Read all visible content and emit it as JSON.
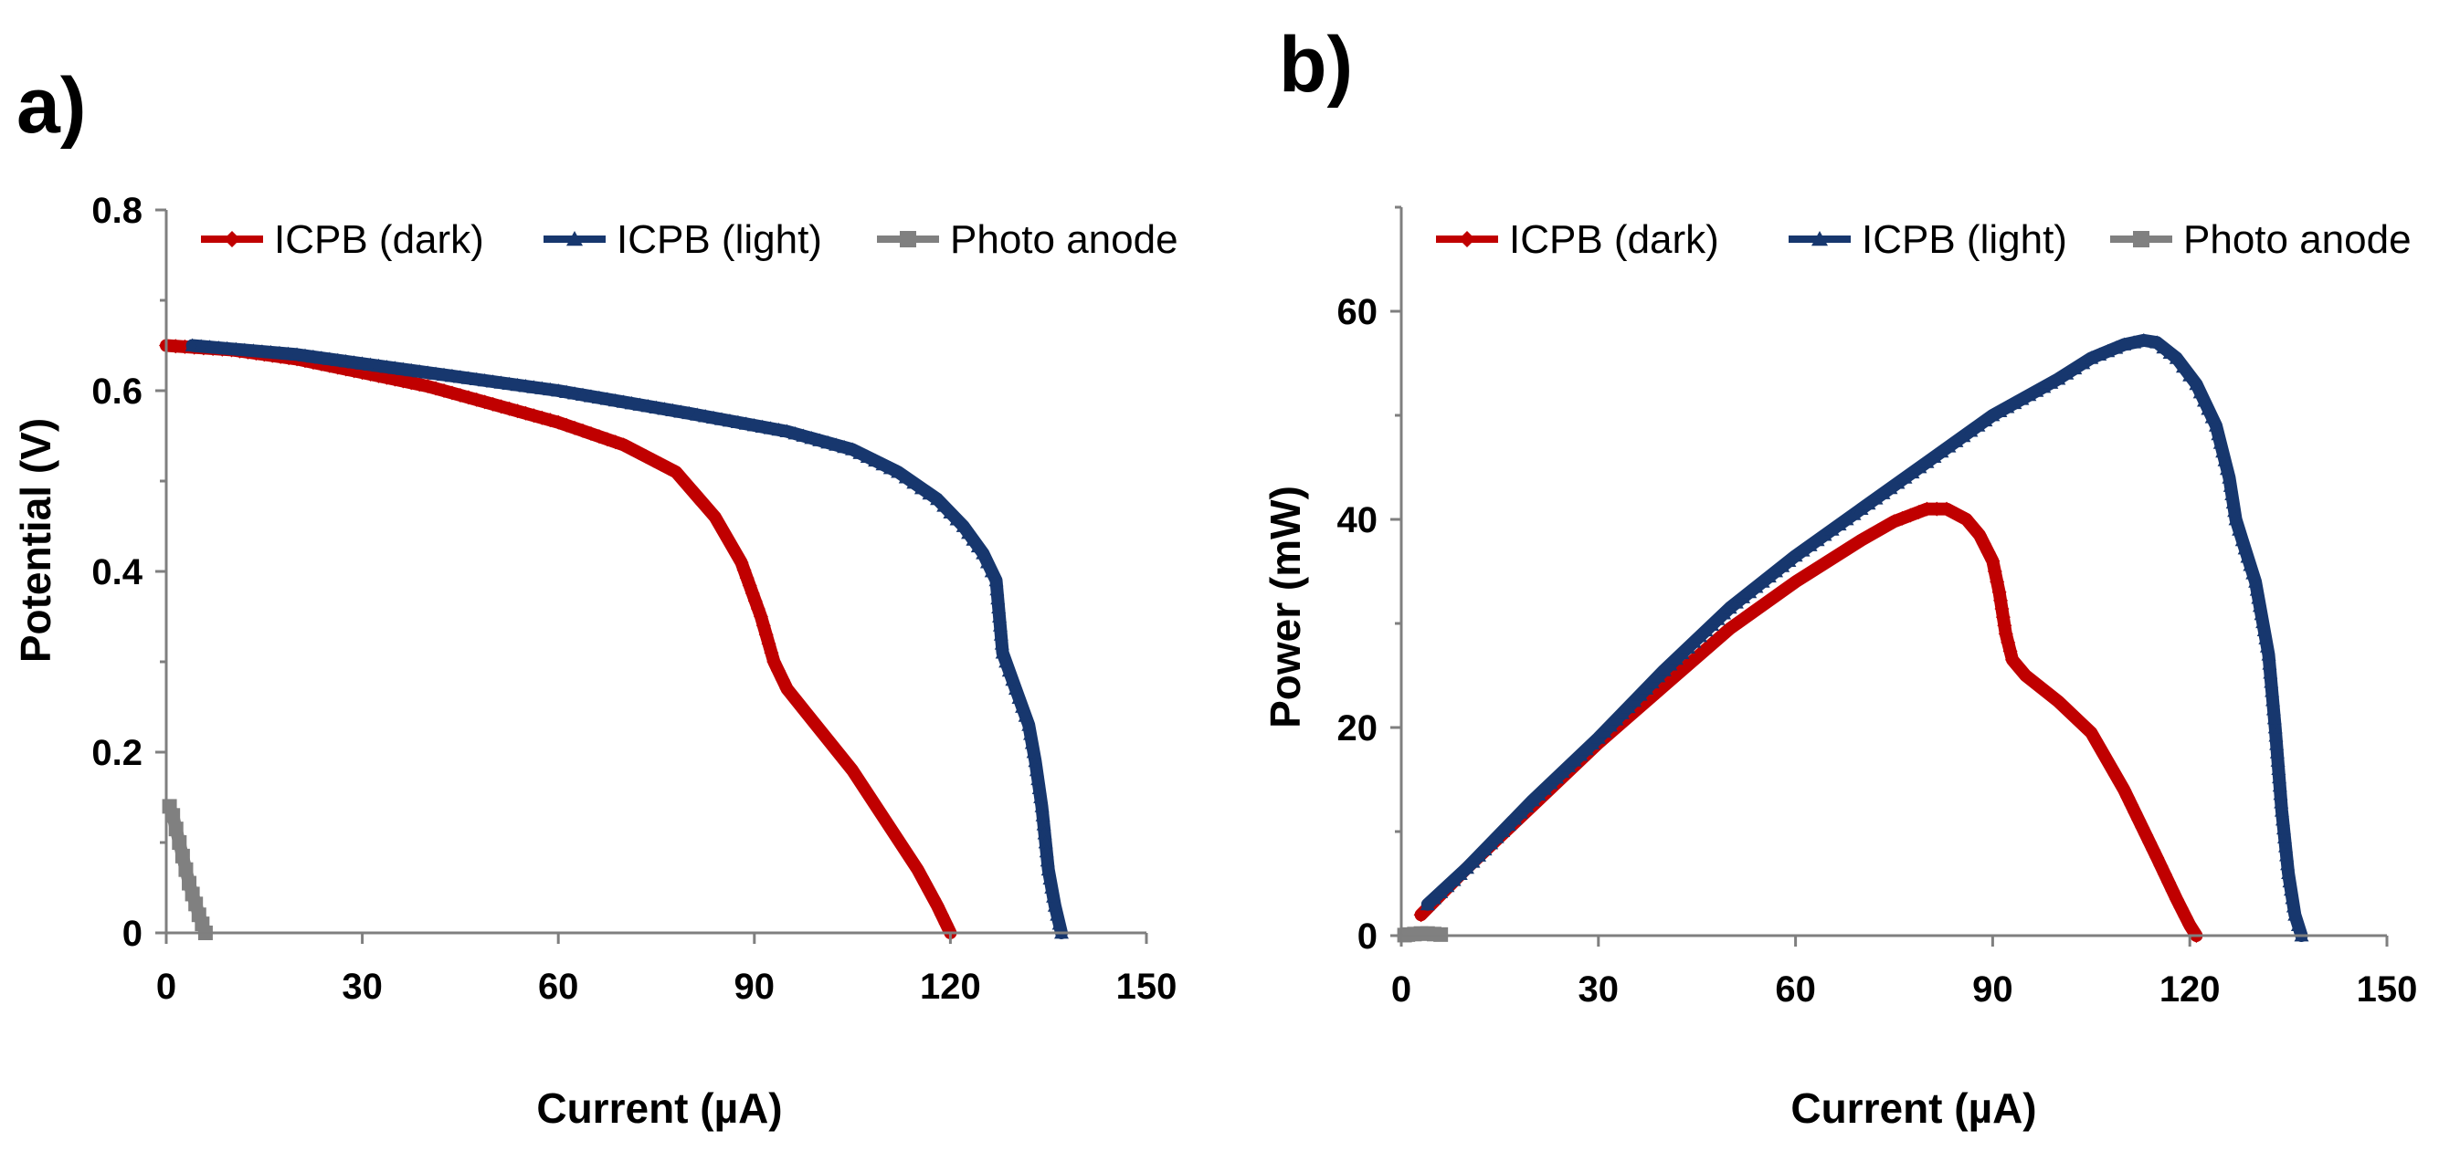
{
  "colors": {
    "dark": "#c00000",
    "light": "#17376e",
    "anode": "#808080",
    "axis": "#7f7f7f"
  },
  "chart_data": [
    {
      "panel_label": "a)",
      "type": "line",
      "title": "",
      "xlabel": "Current (µA)",
      "ylabel": "Potential (V)",
      "xlim": [
        0,
        150
      ],
      "ylim": [
        0,
        0.8
      ],
      "xticks": [
        0,
        30,
        60,
        90,
        120,
        150
      ],
      "yticks": [
        0,
        0.2,
        0.4,
        0.6,
        0.8
      ],
      "xtick_labels": [
        "0",
        "30",
        "60",
        "90",
        "120",
        "150"
      ],
      "ytick_labels": [
        "0",
        "0.2",
        "0.4",
        "0.6",
        "0.8"
      ],
      "legend_position": "top",
      "series": [
        {
          "name": "ICPB (dark)",
          "color": "#c00000",
          "marker": "diamond",
          "x": [
            0,
            10,
            20,
            30,
            40,
            50,
            60,
            70,
            78,
            84,
            88,
            91,
            93,
            95,
            100,
            105,
            110,
            115,
            118,
            120
          ],
          "y": [
            0.65,
            0.645,
            0.635,
            0.62,
            0.605,
            0.585,
            0.565,
            0.54,
            0.51,
            0.46,
            0.41,
            0.35,
            0.3,
            0.27,
            0.225,
            0.18,
            0.125,
            0.07,
            0.03,
            0.0
          ]
        },
        {
          "name": "ICPB (light)",
          "color": "#17376e",
          "marker": "triangle",
          "x": [
            4,
            20,
            40,
            60,
            80,
            95,
            105,
            112,
            118,
            122,
            125,
            127,
            128,
            130,
            132,
            133,
            134,
            135,
            136,
            137
          ],
          "y": [
            0.65,
            0.64,
            0.62,
            0.6,
            0.575,
            0.555,
            0.535,
            0.51,
            0.48,
            0.45,
            0.42,
            0.39,
            0.31,
            0.27,
            0.23,
            0.19,
            0.14,
            0.07,
            0.03,
            0.0
          ]
        },
        {
          "name": "Photo anode",
          "color": "#808080",
          "marker": "square",
          "x": [
            0.5,
            1,
            1.5,
            2,
            2.5,
            3,
            3.5,
            4,
            4.5,
            5,
            5.5,
            6
          ],
          "y": [
            0.14,
            0.13,
            0.115,
            0.1,
            0.085,
            0.07,
            0.055,
            0.043,
            0.032,
            0.02,
            0.01,
            0.0
          ]
        }
      ]
    },
    {
      "panel_label": "b)",
      "type": "line",
      "title": "",
      "xlabel": "Current (µA)",
      "ylabel": "Power (mW)",
      "xlim": [
        0,
        150
      ],
      "ylim": [
        0,
        70
      ],
      "xticks": [
        0,
        30,
        60,
        90,
        120,
        150
      ],
      "yticks": [
        0,
        20,
        40,
        60
      ],
      "xtick_labels": [
        "0",
        "30",
        "60",
        "90",
        "120",
        "150"
      ],
      "ytick_labels": [
        "0",
        "20",
        "40",
        "60"
      ],
      "legend_position": "top",
      "series": [
        {
          "name": "ICPB (dark)",
          "color": "#c00000",
          "marker": "diamond",
          "x": [
            3,
            10,
            20,
            30,
            40,
            50,
            60,
            70,
            75,
            80,
            83,
            86,
            88,
            90,
            91,
            92,
            93,
            95,
            100,
            105,
            110,
            115,
            118,
            120,
            121
          ],
          "y": [
            2,
            6.5,
            12.5,
            18.5,
            24,
            29.5,
            34,
            38,
            39.8,
            41,
            41,
            40,
            38.5,
            36,
            33,
            29,
            26.5,
            25,
            22.5,
            19.5,
            14,
            7.5,
            3.5,
            1,
            0
          ]
        },
        {
          "name": "ICPB (light)",
          "color": "#17376e",
          "marker": "triangle",
          "x": [
            4,
            10,
            20,
            30,
            40,
            50,
            60,
            70,
            80,
            90,
            100,
            105,
            110,
            113,
            115,
            118,
            121,
            124,
            126,
            127,
            128,
            130,
            132,
            133,
            134,
            135,
            136,
            137
          ],
          "y": [
            3,
            6.5,
            13,
            19,
            25.5,
            31.5,
            36.5,
            41,
            45.5,
            50,
            53.5,
            55.5,
            56.8,
            57.2,
            57,
            55.5,
            53,
            49,
            44,
            40,
            38,
            34,
            27,
            20,
            12,
            6,
            2,
            0
          ]
        },
        {
          "name": "Photo anode",
          "color": "#808080",
          "marker": "square",
          "x": [
            0.5,
            1,
            2,
            3,
            4,
            5,
            6
          ],
          "y": [
            0.05,
            0.1,
            0.15,
            0.2,
            0.2,
            0.15,
            0.1
          ]
        }
      ]
    }
  ]
}
